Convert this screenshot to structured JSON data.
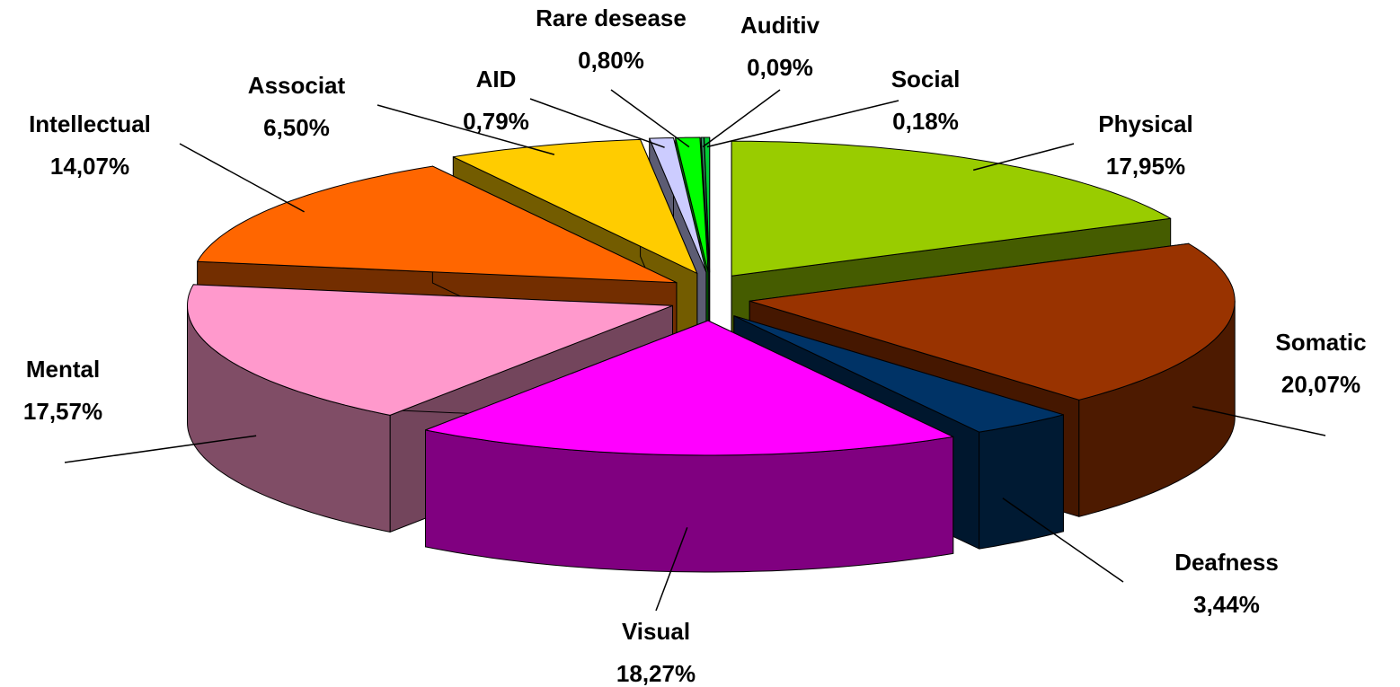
{
  "chart_data": {
    "type": "pie",
    "categories": [
      "Physical",
      "Somatic",
      "Deafness",
      "Visual",
      "Mental",
      "Intellectual",
      "Associat",
      "AID",
      "Rare desease",
      "Auditiv",
      "Social"
    ],
    "values": [
      17.95,
      20.07,
      3.44,
      18.27,
      17.57,
      14.07,
      6.5,
      0.79,
      0.8,
      0.09,
      0.18
    ],
    "value_labels": [
      "17,95%",
      "20,07%",
      "3,44%",
      "18,27%",
      "17,57%",
      "14,07%",
      "6,50%",
      "0,79%",
      "0,80%",
      "0,09%",
      "0,18%"
    ],
    "colors": [
      "#99cc00",
      "#993300",
      "#003366",
      "#ff00ff",
      "#ff99cc",
      "#ff6600",
      "#ffcc00",
      "#ccccff",
      "#00ff00",
      "#339966",
      "#00cc33"
    ]
  }
}
